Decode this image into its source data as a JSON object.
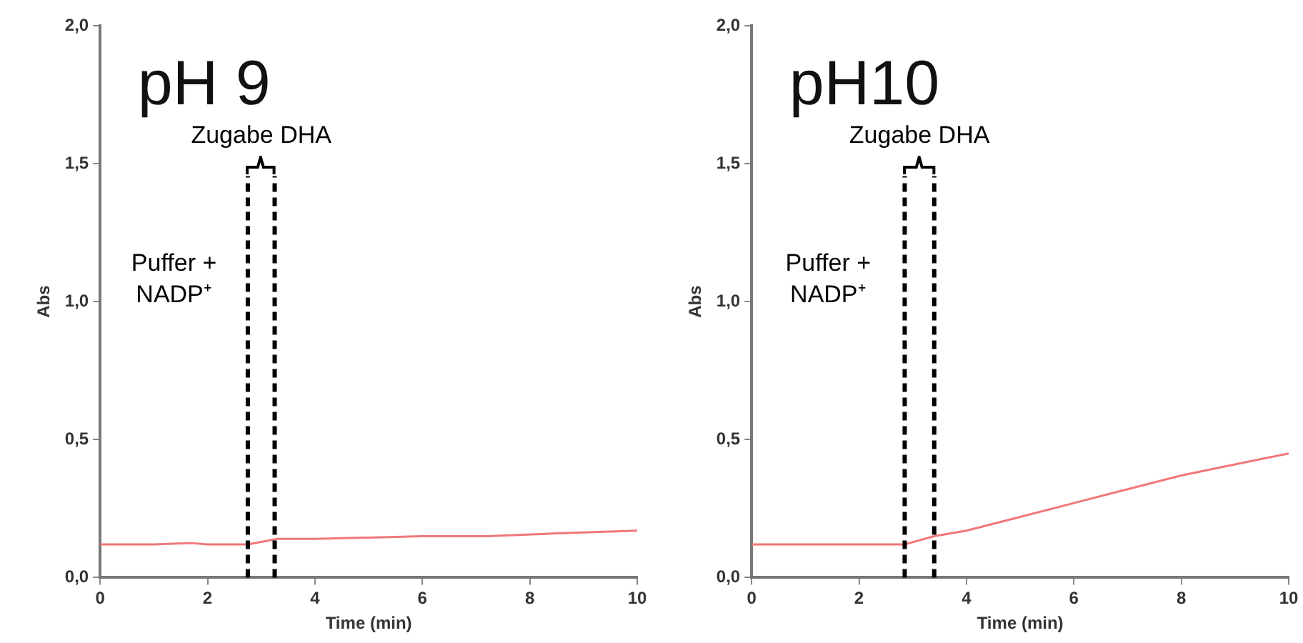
{
  "chart_data": [
    {
      "type": "line",
      "title": "pH 9",
      "xlabel": "Time (min)",
      "ylabel": "Abs",
      "series": [
        {
          "color": "#f07878",
          "x": [
            0,
            1,
            1.7,
            2,
            2.5,
            2.75,
            3.3,
            4,
            5,
            6,
            7.2,
            8.5,
            10
          ],
          "values": [
            0.12,
            0.12,
            0.125,
            0.12,
            0.12,
            0.12,
            0.14,
            0.14,
            0.145,
            0.15,
            0.15,
            0.16,
            0.17
          ]
        }
      ],
      "xlim": [
        0,
        10
      ],
      "xticks": [
        0,
        2,
        4,
        6,
        8,
        10
      ],
      "ylim": [
        0,
        2
      ],
      "yticks": [
        {
          "value": 0,
          "label": "0,0"
        },
        {
          "value": 0.5,
          "label": "0,5"
        },
        {
          "value": 1,
          "label": "1,0"
        },
        {
          "value": 1.5,
          "label": "1,5"
        },
        {
          "value": 2,
          "label": "2,0"
        }
      ],
      "grid": false,
      "legend": false,
      "marker": "none",
      "line_style": "solid",
      "ref_lines": [
        {
          "axis": "x",
          "value": 2.75,
          "color": "#000000",
          "line_style": "dashed"
        },
        {
          "axis": "x",
          "value": 3.25,
          "color": "#000000",
          "line_style": "dashed"
        }
      ],
      "annotations": [
        "Zugabe DHA",
        "Puffer + NADP⁺"
      ]
    },
    {
      "type": "line",
      "title": "pH10",
      "xlabel": "Time (min)",
      "ylabel": "Abs",
      "series": [
        {
          "color": "#f07878",
          "x": [
            0,
            1,
            2,
            2.85,
            3.4,
            4,
            5,
            6,
            7,
            8,
            9,
            10
          ],
          "values": [
            0.12,
            0.12,
            0.12,
            0.12,
            0.15,
            0.17,
            0.22,
            0.27,
            0.32,
            0.37,
            0.41,
            0.45
          ]
        }
      ],
      "xlim": [
        0,
        10
      ],
      "xticks": [
        0,
        2,
        4,
        6,
        8,
        10
      ],
      "ylim": [
        0,
        2
      ],
      "yticks": [
        {
          "value": 0,
          "label": "0,0"
        },
        {
          "value": 0.5,
          "label": "0,5"
        },
        {
          "value": 1,
          "label": "1,0"
        },
        {
          "value": 1.5,
          "label": "1,5"
        },
        {
          "value": 2,
          "label": "2,0"
        }
      ],
      "grid": false,
      "legend": false,
      "marker": "none",
      "line_style": "solid",
      "ref_lines": [
        {
          "axis": "x",
          "value": 2.85,
          "color": "#000000",
          "line_style": "dashed"
        },
        {
          "axis": "x",
          "value": 3.4,
          "color": "#000000",
          "line_style": "dashed"
        }
      ],
      "annotations": [
        "Zugabe DHA",
        "Puffer + NADP⁺"
      ]
    }
  ]
}
